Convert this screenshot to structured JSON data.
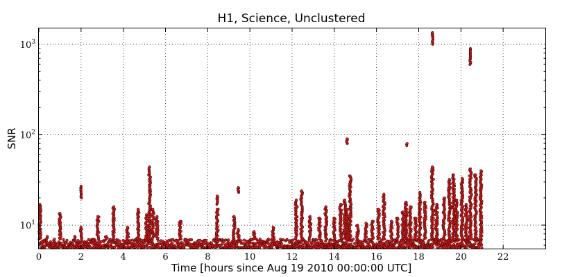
{
  "chart_data": {
    "type": "scatter",
    "title": "H1, Science, Unclustered",
    "xlabel": "Time [hours since Aug 19 2010 00:00:00 UTC]",
    "ylabel": "SNR",
    "yscale": "log",
    "xlim": [
      0,
      24
    ],
    "ylim": [
      5.5,
      1500
    ],
    "grid": true,
    "x_ticks": [
      "0",
      "2",
      "4",
      "6",
      "8",
      "10",
      "12",
      "14",
      "16",
      "18",
      "20",
      "22"
    ],
    "x_tick_values": [
      0,
      2,
      4,
      6,
      8,
      10,
      12,
      14,
      16,
      18,
      20,
      22
    ],
    "y_ticks": [
      {
        "value": 10,
        "base": "10",
        "exp": "1"
      },
      {
        "value": 100,
        "base": "10",
        "exp": "2"
      },
      {
        "value": 1000,
        "base": "10",
        "exp": "3"
      }
    ],
    "marker_color": "#d91e1e",
    "baseline": {
      "x_start": 0.05,
      "x_end": 21.0,
      "snr_min": 5.6,
      "snr_max": 7.0
    },
    "spikes": [
      {
        "x": 0.05,
        "snr_max": 17
      },
      {
        "x": 0.4,
        "snr_max": 7.5
      },
      {
        "x": 1.0,
        "snr_max": 13.5
      },
      {
        "x": 1.7,
        "snr_max": 7.5
      },
      {
        "x": 2.0,
        "snr_max": 9.5
      },
      {
        "x": 2.0,
        "snr_min": 20,
        "snr_max": 27
      },
      {
        "x": 2.8,
        "snr_max": 12.5
      },
      {
        "x": 3.2,
        "snr_max": 7.5
      },
      {
        "x": 3.55,
        "snr_max": 16
      },
      {
        "x": 4.2,
        "snr_max": 9.5
      },
      {
        "x": 4.7,
        "snr_max": 15
      },
      {
        "x": 5.1,
        "snr_max": 13
      },
      {
        "x": 5.25,
        "snr_max": 44
      },
      {
        "x": 5.4,
        "snr_max": 15
      },
      {
        "x": 5.6,
        "snr_max": 12.5
      },
      {
        "x": 6.7,
        "snr_max": 11
      },
      {
        "x": 8.45,
        "snr_max": 15
      },
      {
        "x": 8.45,
        "snr_min": 17,
        "snr_max": 21
      },
      {
        "x": 9.25,
        "snr_max": 12.5
      },
      {
        "x": 9.45,
        "snr_max": 9
      },
      {
        "x": 9.45,
        "snr_min": 23,
        "snr_max": 26
      },
      {
        "x": 10.2,
        "snr_max": 8.5
      },
      {
        "x": 11.1,
        "snr_max": 9.5
      },
      {
        "x": 12.2,
        "snr_max": 19
      },
      {
        "x": 12.45,
        "snr_max": 24
      },
      {
        "x": 12.85,
        "snr_max": 12.5
      },
      {
        "x": 13.3,
        "snr_max": 12
      },
      {
        "x": 13.6,
        "snr_max": 16
      },
      {
        "x": 14.0,
        "snr_max": 12
      },
      {
        "x": 14.3,
        "snr_max": 17
      },
      {
        "x": 14.5,
        "snr_max": 19
      },
      {
        "x": 14.6,
        "snr_max": 15
      },
      {
        "x": 14.6,
        "snr_min": 80,
        "snr_max": 90
      },
      {
        "x": 14.75,
        "snr_max": 35
      },
      {
        "x": 15.1,
        "snr_max": 10
      },
      {
        "x": 15.5,
        "snr_max": 10.5
      },
      {
        "x": 15.8,
        "snr_max": 11
      },
      {
        "x": 16.1,
        "snr_max": 15
      },
      {
        "x": 16.35,
        "snr_max": 22
      },
      {
        "x": 16.7,
        "snr_max": 11
      },
      {
        "x": 17.0,
        "snr_max": 12
      },
      {
        "x": 17.25,
        "snr_max": 14
      },
      {
        "x": 17.4,
        "snr_max": 18
      },
      {
        "x": 17.45,
        "snr_min": 76,
        "snr_max": 80
      },
      {
        "x": 17.6,
        "snr_max": 16
      },
      {
        "x": 17.85,
        "snr_max": 12
      },
      {
        "x": 18.05,
        "snr_max": 23
      },
      {
        "x": 18.3,
        "snr_max": 18
      },
      {
        "x": 18.65,
        "snr_max": 44
      },
      {
        "x": 18.65,
        "snr_min": 1000,
        "snr_max": 1350
      },
      {
        "x": 18.85,
        "snr_max": 17
      },
      {
        "x": 19.2,
        "snr_max": 20
      },
      {
        "x": 19.45,
        "snr_max": 32
      },
      {
        "x": 19.65,
        "snr_max": 36
      },
      {
        "x": 19.8,
        "snr_max": 19
      },
      {
        "x": 20.05,
        "snr_max": 33
      },
      {
        "x": 20.25,
        "snr_max": 17
      },
      {
        "x": 20.45,
        "snr_max": 42
      },
      {
        "x": 20.45,
        "snr_min": 600,
        "snr_max": 900
      },
      {
        "x": 20.7,
        "snr_max": 36
      },
      {
        "x": 20.95,
        "snr_max": 40
      }
    ]
  }
}
